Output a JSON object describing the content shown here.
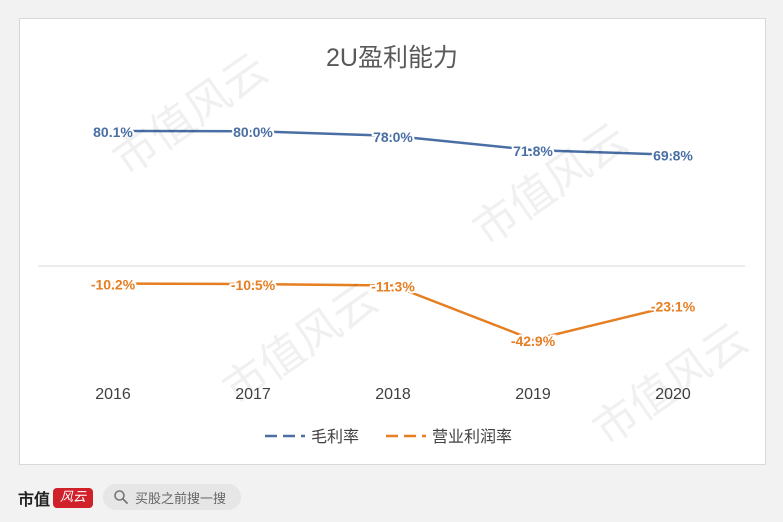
{
  "chart_data": {
    "type": "line",
    "title": "2U盈利能力",
    "categories": [
      "2016",
      "2017",
      "2018",
      "2019",
      "2020"
    ],
    "series": [
      {
        "name": "毛利率",
        "values": [
          80.1,
          80.0,
          78.0,
          71.8,
          69.8
        ],
        "labels": [
          "80.1%",
          "80.0%",
          "78.0%",
          "71.8%",
          "69.8%"
        ],
        "color": "#4a6fa5"
      },
      {
        "name": "营业利润率",
        "values": [
          -10.2,
          -10.5,
          -11.3,
          -42.9,
          -23.1
        ],
        "labels": [
          "-10.2%",
          "-10.5%",
          "-11.3%",
          "-42.9%",
          "-23.1%"
        ],
        "color": "#e67e22"
      }
    ],
    "grid": false,
    "legend": "bottom"
  },
  "watermark": "市值风云",
  "footer": {
    "brand_text": "市值",
    "brand_mark": "风云",
    "search_placeholder": "买股之前搜一搜",
    "search_icon": "search-icon"
  }
}
